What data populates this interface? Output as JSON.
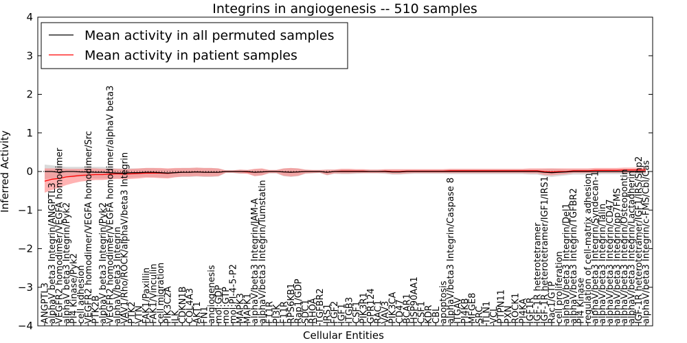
{
  "chart_data": {
    "type": "line",
    "title": "Integrins in angiogenesis -- 510 samples",
    "xlabel": "Cellular Entities",
    "ylabel": "Inferred Activity",
    "ylim": [
      -4,
      4
    ],
    "yticks": [
      -4,
      -3,
      -2,
      -1,
      0,
      1,
      2,
      3,
      4
    ],
    "ytick_labels": [
      "−4",
      "−3",
      "−2",
      "−1",
      "0",
      "1",
      "2",
      "3",
      "4"
    ],
    "grid": false,
    "legend": {
      "placement": "top-left",
      "entries": [
        {
          "label": "Mean activity in all permuted samples",
          "color": "#000000"
        },
        {
          "label": "Mean activity in patient samples",
          "color": "#ff0000"
        }
      ]
    },
    "categories": [
      "ANGPTL3",
      "alphaV beta3 Integrin/ANGPTL3",
      "VEGFR2 homodimer/VEGFA homodimer",
      "alphaV beta3 Integrin/Pyk2",
      "PI4 Kinase/Pyk2",
      "cell adhesion",
      "VEGFR2 homodimer/VEGFA homodimer/Src",
      "PTK2B",
      "alphaV beta3 Integrin/Pyk2",
      "VEGFR2 homodimer/VEGFA homodimer/alphaV beta3",
      "alphaV/beta3 Integrin",
      "VAV1/Rho/ROCK/alphaV/beta3 Integrin",
      "PTK2",
      "VTN",
      "FAK1/Paxillin",
      "FAK1/Vinculin",
      "cell migration",
      "PIK3C2A",
      "ILK",
      "CDKN1B",
      "COL4A3",
      "AKT1",
      "FN1",
      "angiogenesis",
      "mol:GDP",
      "mol:GTP",
      "mol:PI-4-5-P2",
      "MAPK3",
      "MAPK1",
      "alphaV/beta3 Integrin/JAM-A",
      "alphaV/beta3 Integrin/Tumstatin",
      "F11R",
      "PI3K",
      "F11R",
      "RPS6KB1",
      "Rap1/GDP",
      "SDC1",
      "RHOA",
      "TGFBR2",
      "IRS1",
      "FGF2",
      "IGF1",
      "ITGB3",
      "CSF1",
      "PIK3R1",
      "GPR124",
      "RAC1",
      "VAV3",
      "PIK3CA",
      "CD47",
      "BCAR1",
      "HSP90AA1",
      "CSF1",
      "KDR",
      "CBL",
      "apoptosis",
      "alphaV/beta3 Integrin/Caspase 8",
      "ITGAV",
      "PI4KB",
      "MFGE8",
      "SRC",
      "TLN1",
      "VCL",
      "PTPN11",
      "PXN",
      "ROCK1",
      "PI4KA",
      "IGF1R",
      "IGF-1R heterotetramer",
      "IGF-1R heterotetramer/IGF1/IRS1",
      "Rac1/GTP",
      "cell proliferation",
      "alphaV/beta3 Integrin/Del1",
      "alphaV/beta3 Integrin/TGFBR2",
      "PI4 Kinase",
      "regulation of cell-matrix adhesion",
      "alphaV/beta3 Integrin/Syndecan-1",
      "alphaV/beta3 Integrin/Talin",
      "alphaV/beta3 Integrin/CD47",
      "alphaV/beta3 Integrin/pp7FMS",
      "alphaV/beta3 Integrin/Osteopontin",
      "alphaV/beta3 Integrin/Lactadherin",
      "IGF-1R heterotetramer/IGF1/IRS/Shp2",
      "alphaV/beta3 Integrin/c-FMS/Cbl/Cas"
    ],
    "series": [
      {
        "name": "Mean activity in all permuted samples",
        "color": "#000000",
        "band_color": "#bbbbbb",
        "values": [
          0.0,
          0.0,
          -0.02,
          0.0,
          0.0,
          -0.01,
          -0.01,
          -0.02,
          -0.02,
          -0.03,
          -0.04,
          -0.04,
          -0.03,
          -0.03,
          -0.02,
          -0.02,
          -0.03,
          -0.04,
          -0.03,
          -0.02,
          -0.02,
          -0.01,
          -0.02,
          -0.02,
          -0.02,
          0.0,
          0.0,
          0.0,
          0.0,
          -0.02,
          -0.01,
          0.0,
          0.0,
          -0.01,
          -0.02,
          -0.01,
          0.0,
          0.0,
          0.0,
          -0.02,
          0.0,
          0.0,
          0.0,
          0.0,
          0.0,
          0.0,
          0.0,
          0.0,
          -0.01,
          -0.01,
          0.0,
          0.0,
          0.0,
          0.0,
          0.0,
          0.0,
          0.0,
          0.0,
          0.0,
          0.0,
          0.0,
          0.0,
          0.0,
          0.0,
          0.0,
          0.0,
          0.0,
          0.0,
          0.0,
          -0.02,
          -0.03,
          -0.02,
          -0.01,
          0.0,
          0.0,
          0.0,
          0.0,
          0.0,
          0.0,
          0.0,
          0.0,
          0.0,
          0.0,
          0.0
        ],
        "lower": [
          -0.2,
          -0.18,
          -0.2,
          -0.15,
          -0.15,
          -0.14,
          -0.16,
          -0.18,
          -0.18,
          -0.18,
          -0.18,
          -0.17,
          -0.16,
          -0.15,
          -0.14,
          -0.15,
          -0.16,
          -0.16,
          -0.15,
          -0.14,
          -0.14,
          -0.13,
          -0.14,
          -0.14,
          -0.13,
          -0.04,
          -0.04,
          -0.06,
          -0.05,
          -0.12,
          -0.1,
          -0.05,
          -0.05,
          -0.12,
          -0.14,
          -0.12,
          -0.06,
          -0.05,
          -0.04,
          -0.1,
          -0.06,
          -0.07,
          -0.07,
          -0.06,
          -0.05,
          -0.05,
          -0.05,
          -0.06,
          -0.08,
          -0.08,
          -0.07,
          -0.06,
          -0.06,
          -0.06,
          -0.06,
          -0.06,
          -0.07,
          -0.07,
          -0.07,
          -0.07,
          -0.07,
          -0.07,
          -0.07,
          -0.07,
          -0.07,
          -0.07,
          -0.07,
          -0.08,
          -0.08,
          -0.12,
          -0.14,
          -0.12,
          -0.1,
          -0.08,
          -0.08,
          -0.08,
          -0.08,
          -0.07,
          -0.07,
          -0.07,
          -0.07,
          -0.07,
          -0.07,
          -0.07
        ],
        "upper": [
          0.18,
          0.16,
          0.14,
          0.12,
          0.12,
          0.12,
          0.13,
          0.12,
          0.12,
          0.1,
          0.08,
          0.08,
          0.08,
          0.08,
          0.09,
          0.09,
          0.08,
          0.07,
          0.08,
          0.09,
          0.09,
          0.1,
          0.09,
          0.09,
          0.08,
          0.03,
          0.03,
          0.05,
          0.04,
          0.06,
          0.07,
          0.04,
          0.04,
          0.08,
          0.09,
          0.08,
          0.05,
          0.04,
          0.04,
          0.05,
          0.05,
          0.06,
          0.06,
          0.05,
          0.05,
          0.05,
          0.05,
          0.05,
          0.05,
          0.05,
          0.05,
          0.05,
          0.05,
          0.05,
          0.05,
          0.05,
          0.06,
          0.06,
          0.06,
          0.06,
          0.06,
          0.06,
          0.06,
          0.06,
          0.06,
          0.06,
          0.06,
          0.06,
          0.06,
          0.07,
          0.08,
          0.07,
          0.06,
          0.06,
          0.06,
          0.06,
          0.06,
          0.06,
          0.06,
          0.06,
          0.06,
          0.06,
          0.06,
          0.06
        ]
      },
      {
        "name": "Mean activity in patient samples",
        "color": "#ff0000",
        "band_color": "#ff8080",
        "values": [
          -0.25,
          -0.2,
          -0.18,
          -0.14,
          -0.12,
          -0.1,
          -0.09,
          -0.08,
          -0.08,
          -0.07,
          -0.06,
          -0.07,
          -0.06,
          -0.05,
          -0.04,
          -0.04,
          -0.04,
          -0.05,
          -0.03,
          -0.02,
          -0.02,
          -0.01,
          -0.02,
          -0.02,
          -0.02,
          0.0,
          0.0,
          0.0,
          -0.01,
          -0.02,
          -0.01,
          0.0,
          0.0,
          -0.01,
          -0.02,
          -0.01,
          0.0,
          0.0,
          0.0,
          -0.02,
          0.0,
          0.01,
          0.01,
          0.01,
          0.01,
          0.0,
          0.0,
          0.01,
          0.0,
          0.0,
          0.01,
          0.01,
          0.01,
          0.01,
          0.01,
          0.01,
          0.02,
          0.02,
          0.02,
          0.02,
          0.02,
          0.02,
          0.02,
          0.02,
          0.02,
          0.02,
          0.02,
          0.02,
          0.02,
          0.0,
          -0.01,
          0.0,
          0.0,
          0.02,
          0.02,
          0.02,
          0.03,
          0.03,
          0.03,
          0.03,
          0.04,
          0.04,
          0.04,
          0.04
        ],
        "lower": [
          -0.55,
          -0.48,
          -0.42,
          -0.35,
          -0.3,
          -0.26,
          -0.24,
          -0.22,
          -0.22,
          -0.2,
          -0.19,
          -0.2,
          -0.19,
          -0.18,
          -0.16,
          -0.16,
          -0.17,
          -0.18,
          -0.15,
          -0.13,
          -0.13,
          -0.12,
          -0.13,
          -0.13,
          -0.12,
          -0.03,
          -0.03,
          -0.05,
          -0.06,
          -0.12,
          -0.1,
          -0.04,
          -0.04,
          -0.11,
          -0.13,
          -0.11,
          -0.05,
          -0.04,
          -0.03,
          -0.09,
          -0.05,
          -0.05,
          -0.05,
          -0.04,
          -0.04,
          -0.04,
          -0.04,
          -0.04,
          -0.06,
          -0.06,
          -0.05,
          -0.04,
          -0.04,
          -0.04,
          -0.04,
          -0.04,
          -0.04,
          -0.04,
          -0.04,
          -0.04,
          -0.04,
          -0.04,
          -0.04,
          -0.04,
          -0.04,
          -0.04,
          -0.04,
          -0.05,
          -0.05,
          -0.09,
          -0.1,
          -0.08,
          -0.07,
          -0.04,
          -0.04,
          -0.04,
          -0.03,
          -0.03,
          -0.03,
          -0.03,
          -0.03,
          -0.03,
          -0.03,
          -0.03
        ],
        "upper": [
          0.08,
          0.08,
          0.08,
          0.07,
          0.07,
          0.07,
          0.08,
          0.08,
          0.07,
          0.07,
          0.07,
          0.06,
          0.07,
          0.08,
          0.09,
          0.09,
          0.09,
          0.08,
          0.09,
          0.09,
          0.09,
          0.1,
          0.09,
          0.09,
          0.08,
          0.03,
          0.03,
          0.05,
          0.04,
          0.07,
          0.08,
          0.04,
          0.04,
          0.08,
          0.09,
          0.08,
          0.05,
          0.04,
          0.04,
          0.05,
          0.05,
          0.07,
          0.07,
          0.06,
          0.06,
          0.05,
          0.05,
          0.06,
          0.06,
          0.06,
          0.06,
          0.06,
          0.06,
          0.06,
          0.06,
          0.06,
          0.07,
          0.07,
          0.07,
          0.07,
          0.07,
          0.07,
          0.07,
          0.07,
          0.07,
          0.07,
          0.07,
          0.08,
          0.08,
          0.08,
          0.08,
          0.08,
          0.08,
          0.08,
          0.08,
          0.08,
          0.09,
          0.09,
          0.09,
          0.09,
          0.1,
          0.1,
          0.1,
          0.1
        ]
      }
    ]
  }
}
